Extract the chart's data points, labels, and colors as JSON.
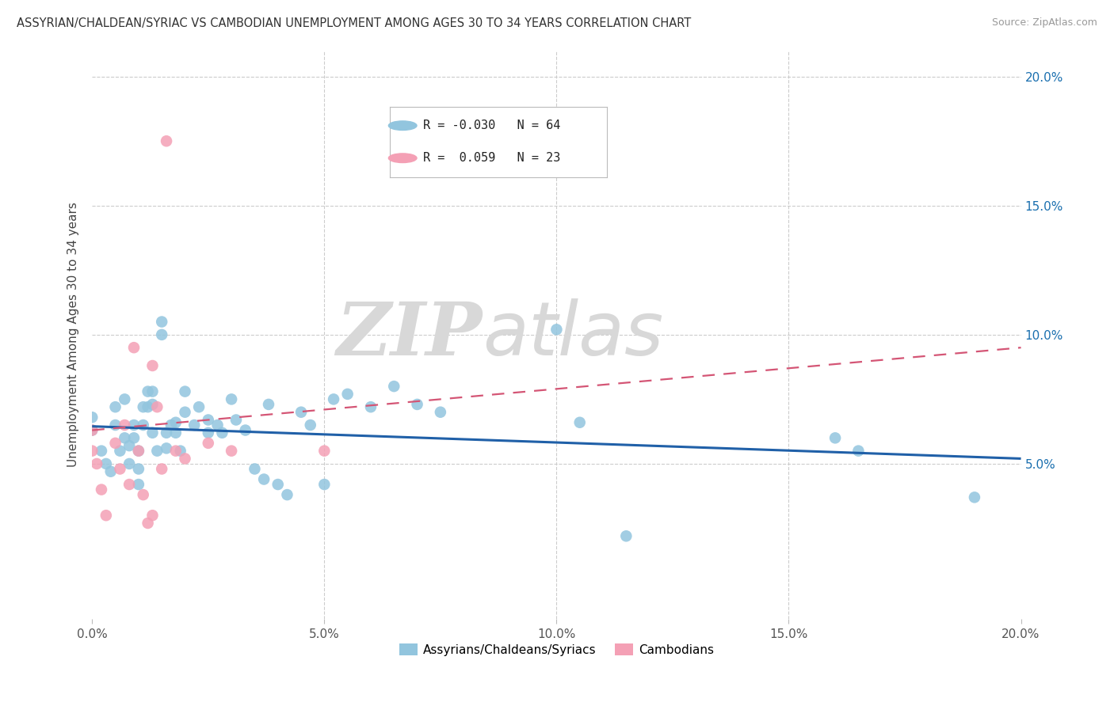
{
  "title": "ASSYRIAN/CHALDEAN/SYRIAC VS CAMBODIAN UNEMPLOYMENT AMONG AGES 30 TO 34 YEARS CORRELATION CHART",
  "source": "Source: ZipAtlas.com",
  "ylabel_label": "Unemployment Among Ages 30 to 34 years",
  "xlim": [
    0.0,
    0.2
  ],
  "ylim": [
    -0.01,
    0.21
  ],
  "xticks": [
    0.0,
    0.05,
    0.1,
    0.15,
    0.2
  ],
  "yticks": [
    0.05,
    0.1,
    0.15,
    0.2
  ],
  "xtick_labels": [
    "0.0%",
    "5.0%",
    "10.0%",
    "15.0%",
    "20.0%"
  ],
  "right_ytick_labels": [
    "5.0%",
    "10.0%",
    "15.0%",
    "20.0%"
  ],
  "blue_color": "#92c5de",
  "pink_color": "#f4a0b5",
  "blue_line_color": "#2060a8",
  "pink_line_color": "#d45575",
  "legend_blue_R": "-0.030",
  "legend_blue_N": "64",
  "legend_pink_R": " 0.059",
  "legend_pink_N": "23",
  "watermark_zip": "ZIP",
  "watermark_atlas": "atlas",
  "blue_points_x": [
    0.0,
    0.0,
    0.002,
    0.003,
    0.004,
    0.005,
    0.005,
    0.006,
    0.007,
    0.007,
    0.008,
    0.008,
    0.009,
    0.009,
    0.01,
    0.01,
    0.01,
    0.011,
    0.011,
    0.012,
    0.012,
    0.013,
    0.013,
    0.013,
    0.014,
    0.015,
    0.015,
    0.016,
    0.016,
    0.017,
    0.018,
    0.018,
    0.019,
    0.02,
    0.02,
    0.022,
    0.023,
    0.025,
    0.025,
    0.027,
    0.028,
    0.03,
    0.031,
    0.033,
    0.035,
    0.037,
    0.038,
    0.04,
    0.042,
    0.045,
    0.047,
    0.05,
    0.052,
    0.055,
    0.06,
    0.065,
    0.07,
    0.075,
    0.1,
    0.105,
    0.115,
    0.16,
    0.165,
    0.19
  ],
  "blue_points_y": [
    0.063,
    0.068,
    0.055,
    0.05,
    0.047,
    0.072,
    0.065,
    0.055,
    0.075,
    0.06,
    0.057,
    0.05,
    0.065,
    0.06,
    0.055,
    0.048,
    0.042,
    0.072,
    0.065,
    0.078,
    0.072,
    0.078,
    0.073,
    0.062,
    0.055,
    0.105,
    0.1,
    0.062,
    0.056,
    0.065,
    0.066,
    0.062,
    0.055,
    0.078,
    0.07,
    0.065,
    0.072,
    0.067,
    0.062,
    0.065,
    0.062,
    0.075,
    0.067,
    0.063,
    0.048,
    0.044,
    0.073,
    0.042,
    0.038,
    0.07,
    0.065,
    0.042,
    0.075,
    0.077,
    0.072,
    0.08,
    0.073,
    0.07,
    0.102,
    0.066,
    0.022,
    0.06,
    0.055,
    0.037
  ],
  "pink_points_x": [
    0.0,
    0.0,
    0.001,
    0.002,
    0.003,
    0.005,
    0.006,
    0.007,
    0.008,
    0.009,
    0.01,
    0.011,
    0.012,
    0.013,
    0.013,
    0.014,
    0.015,
    0.016,
    0.018,
    0.02,
    0.025,
    0.03,
    0.05
  ],
  "pink_points_y": [
    0.063,
    0.055,
    0.05,
    0.04,
    0.03,
    0.058,
    0.048,
    0.065,
    0.042,
    0.095,
    0.055,
    0.038,
    0.027,
    0.03,
    0.088,
    0.072,
    0.048,
    0.175,
    0.055,
    0.052,
    0.058,
    0.055,
    0.055
  ]
}
